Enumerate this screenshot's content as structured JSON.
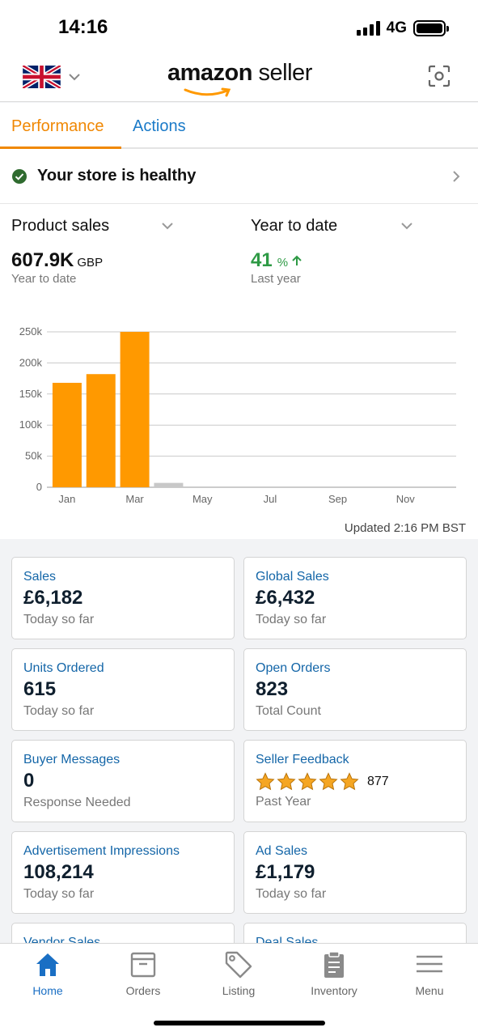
{
  "status_bar": {
    "time": "14:16",
    "network": "4G"
  },
  "header": {
    "logo_primary": "amazon",
    "logo_secondary": "seller"
  },
  "tabs": [
    {
      "label": "Performance",
      "active": true
    },
    {
      "label": "Actions",
      "active": false
    }
  ],
  "health": {
    "text": "Your store is healthy"
  },
  "chart_section": {
    "metric_selector": "Product sales",
    "period_selector": "Year to date",
    "metric_value": "607.9K",
    "metric_unit": "GBP",
    "metric_caption": "Year to date",
    "change_value": "41",
    "change_unit": "%",
    "change_caption": "Last year",
    "updated": "Updated 2:16 PM BST"
  },
  "chart_data": {
    "type": "bar",
    "categories": [
      "Jan",
      "Feb",
      "Mar",
      "Apr",
      "May",
      "Jun",
      "Jul",
      "Aug",
      "Sep",
      "Oct",
      "Nov",
      "Dec"
    ],
    "x_tick_labels": [
      "Jan",
      "",
      "Mar",
      "",
      "May",
      "",
      "Jul",
      "",
      "Sep",
      "",
      "Nov",
      ""
    ],
    "values": [
      168000,
      182000,
      250000,
      7000,
      0,
      0,
      0,
      0,
      0,
      0,
      0,
      0
    ],
    "bar_colors": [
      "#ff9900",
      "#ff9900",
      "#ff9900",
      "#c8c8c8"
    ],
    "y_ticks": [
      0,
      50000,
      100000,
      150000,
      200000,
      250000
    ],
    "y_tick_labels": [
      "0",
      "50k",
      "100k",
      "150k",
      "200k",
      "250k"
    ],
    "ylim": [
      0,
      250000
    ],
    "grid": true,
    "title": "",
    "xlabel": "",
    "ylabel": ""
  },
  "cards": [
    {
      "title": "Sales",
      "value": "£6,182",
      "sub": "Today so far"
    },
    {
      "title": "Global Sales",
      "value": "£6,432",
      "sub": "Today so far"
    },
    {
      "title": "Units Ordered",
      "value": "615",
      "sub": "Today so far"
    },
    {
      "title": "Open Orders",
      "value": "823",
      "sub": "Total Count"
    },
    {
      "title": "Buyer Messages",
      "value": "0",
      "sub": "Response Needed"
    },
    {
      "title": "Seller Feedback",
      "rating": 5,
      "count": "877",
      "sub": "Past Year"
    },
    {
      "title": "Advertisement Impressions",
      "value": "108,214",
      "sub": "Today so far"
    },
    {
      "title": "Ad Sales",
      "value": "£1,179",
      "sub": "Today so far"
    },
    {
      "title": "Vendor Sales",
      "value": "",
      "sub": ""
    },
    {
      "title": "Deal Sales",
      "value": "",
      "sub": ""
    }
  ],
  "bottom_nav": [
    {
      "label": "Home",
      "icon": "home-icon",
      "active": true
    },
    {
      "label": "Orders",
      "icon": "orders-icon",
      "active": false
    },
    {
      "label": "Listing",
      "icon": "tag-icon",
      "active": false
    },
    {
      "label": "Inventory",
      "icon": "clipboard-icon",
      "active": false
    },
    {
      "label": "Menu",
      "icon": "hamburger-icon",
      "active": false
    }
  ],
  "colors": {
    "accent": "#f08804",
    "link": "#1a7ac8",
    "positive": "#2e9a45",
    "bar": "#ff9900",
    "star": "#f5a623"
  }
}
